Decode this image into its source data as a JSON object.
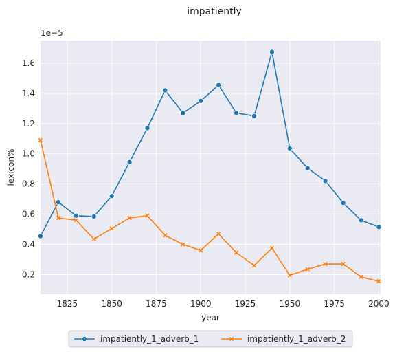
{
  "chart_data": {
    "type": "line",
    "title": "impatiently",
    "xlabel": "year",
    "ylabel": "lexicon%",
    "y_offset_label": "1e−5",
    "xlim": [
      1810,
      2001
    ],
    "ylim": [
      0.07,
      1.75
    ],
    "y_scale_factor": "1e-5",
    "x_ticks": [
      1825,
      1850,
      1875,
      1900,
      1925,
      1950,
      1975,
      2000
    ],
    "y_ticks": [
      0.2,
      0.4,
      0.6,
      0.8,
      1.0,
      1.2,
      1.4,
      1.6
    ],
    "y_tick_labels": [
      "0.2",
      "0.4",
      "0.6",
      "0.8",
      "1.0",
      "1.2",
      "1.4",
      "1.6"
    ],
    "grid": true,
    "legend_placement": "bottom-center",
    "x": [
      1810,
      1820,
      1830,
      1840,
      1850,
      1860,
      1870,
      1880,
      1890,
      1900,
      1910,
      1920,
      1930,
      1940,
      1950,
      1960,
      1970,
      1980,
      1990,
      2000
    ],
    "series": [
      {
        "name": "impatiently_1_adverb_1",
        "color": "#1f77b4",
        "marker": "circle",
        "values": [
          0.455,
          0.68,
          0.59,
          0.585,
          0.72,
          0.945,
          1.17,
          1.42,
          1.27,
          1.35,
          1.455,
          1.27,
          1.25,
          1.675,
          1.035,
          0.905,
          0.82,
          0.675,
          0.56,
          0.515
        ]
      },
      {
        "name": "impatiently_1_adverb_2",
        "color": "#ff7f0e",
        "marker": "x",
        "values": [
          1.09,
          0.575,
          0.56,
          0.435,
          0.505,
          0.575,
          0.59,
          0.46,
          0.4,
          0.36,
          0.47,
          0.345,
          0.26,
          0.375,
          0.195,
          0.235,
          0.27,
          0.27,
          0.185,
          0.155
        ]
      }
    ]
  }
}
